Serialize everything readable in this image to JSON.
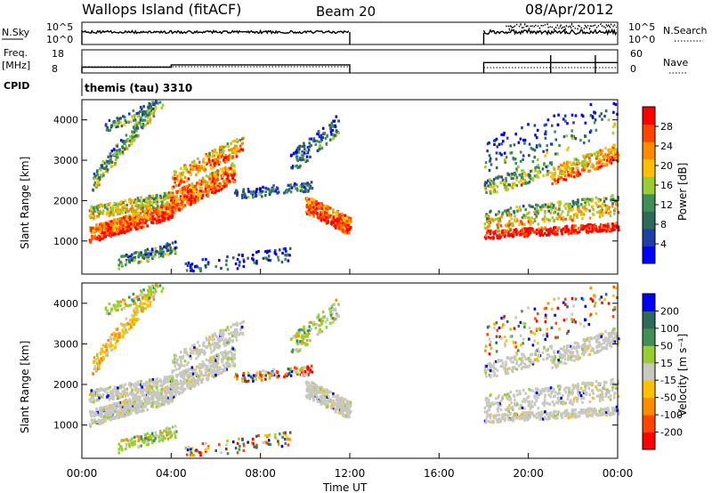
{
  "header": {
    "station": "Wallops Island (fitACF)",
    "beam": "Beam 20",
    "date": "08/Apr/2012"
  },
  "strips": {
    "nsky_label": "N.Sky",
    "nsky_ticks": [
      "10^5",
      "10^0"
    ],
    "nsearch_label": "N.Search",
    "nsearch_ticks": [
      "10^5",
      "10^0"
    ],
    "freq_label": "Freq.",
    "freq_unit": "[MHz]",
    "freq_ticks": [
      "18",
      "8"
    ],
    "nave_label": "Nave",
    "nave_ticks": [
      "60",
      "0"
    ],
    "cpid_label": "CPID",
    "cpid_value": "themis (tau) 3310"
  },
  "colors": {
    "power_scale": [
      "#0000ff",
      "#1e3fa8",
      "#2e6a5a",
      "#3f8f56",
      "#9acd32",
      "#ffc000",
      "#ff8c00",
      "#ff4500",
      "#ff0000"
    ],
    "velocity_scale": [
      "#ff0000",
      "#ff4500",
      "#ff8c00",
      "#ffc000",
      "#c8c8c0",
      "#9acd32",
      "#3f8f56",
      "#2e6a5a",
      "#0000ff"
    ]
  },
  "chart_data": [
    {
      "type": "heatmap",
      "name": "power",
      "ylabel": "Slant Range [km]",
      "yticks": [
        1000,
        2000,
        3000,
        4000
      ],
      "ylim": [
        180,
        4500
      ],
      "xlim": [
        0,
        24
      ],
      "xticks": [
        "00:00",
        "04:00",
        "08:00",
        "12:00",
        "16:00",
        "20:00",
        "00:00"
      ],
      "colorbar_label": "Power [dB]",
      "colorbar_ticks": [
        "28",
        "24",
        "20",
        "16",
        "12",
        "8",
        "4"
      ],
      "colorbar_range": [
        0,
        30
      ],
      "data_coverage_hours": [
        [
          0,
          12
        ],
        [
          18,
          24
        ]
      ]
    },
    {
      "type": "heatmap",
      "name": "velocity",
      "ylabel": "Slant Range [km]",
      "yticks": [
        1000,
        2000,
        3000,
        4000
      ],
      "ylim": [
        180,
        4500
      ],
      "xlim": [
        0,
        24
      ],
      "xticks": [
        "00:00",
        "04:00",
        "08:00",
        "12:00",
        "16:00",
        "20:00",
        "00:00"
      ],
      "xlabel": "Time UT",
      "colorbar_label": "Velocity [m s⁻¹]",
      "colorbar_ticks": [
        "200",
        "100",
        "50",
        "15",
        "-15",
        "-50",
        "-100",
        "-200"
      ],
      "colorbar_range": [
        -250,
        250
      ],
      "data_coverage_hours": [
        [
          0,
          12
        ],
        [
          18,
          24
        ]
      ]
    },
    {
      "type": "line",
      "name": "frequency",
      "ylabel": "Freq. [MHz]",
      "ylim": [
        8,
        18
      ],
      "series": [
        {
          "x": [
            0,
            4,
            4,
            12,
            18,
            24
          ],
          "values": [
            10.5,
            10.5,
            11.5,
            11.5,
            12.5,
            12.5
          ]
        }
      ]
    }
  ]
}
